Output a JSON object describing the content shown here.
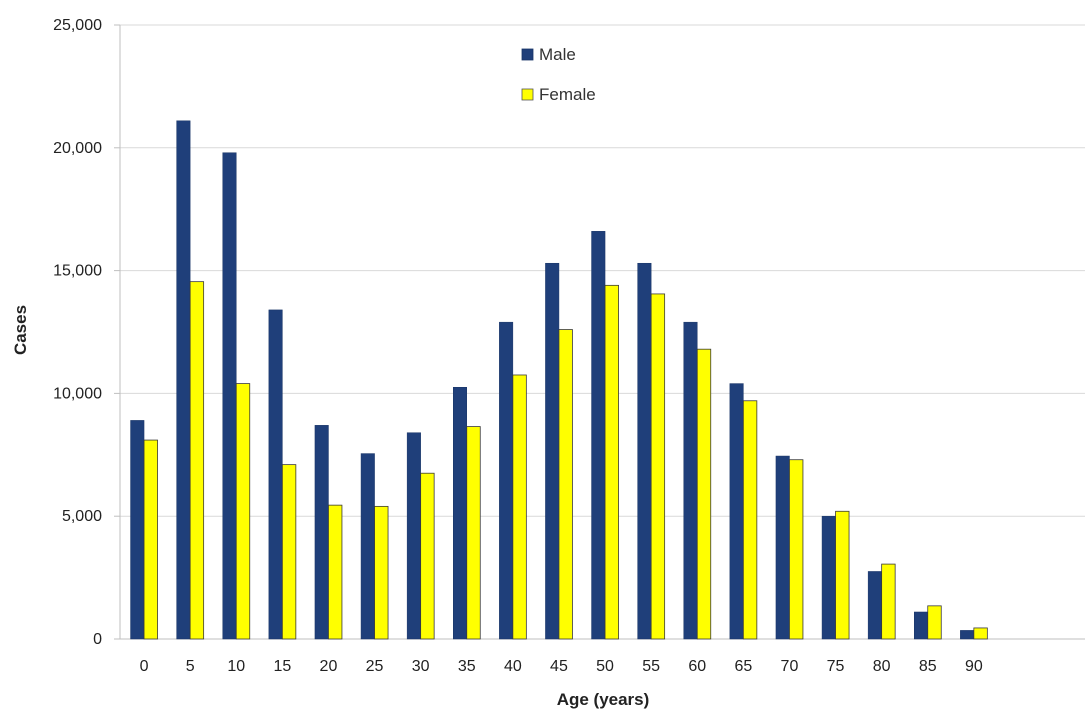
{
  "chart_data": {
    "type": "bar",
    "xlabel": "Age (years)",
    "ylabel": "Cases",
    "ylim": [
      0,
      25000
    ],
    "yticks": [
      "0",
      "5,000",
      "10,000",
      "15,000",
      "20,000",
      "25,000"
    ],
    "ytick_values": [
      0,
      5000,
      10000,
      15000,
      20000,
      25000
    ],
    "grid": true,
    "legend_position": "top-center",
    "categories": [
      "0",
      "5",
      "10",
      "15",
      "20",
      "25",
      "30",
      "35",
      "40",
      "45",
      "50",
      "55",
      "60",
      "65",
      "70",
      "75",
      "80",
      "85",
      "90"
    ],
    "series": [
      {
        "name": "Male",
        "color": "#1f3f7a",
        "values": [
          8900,
          21100,
          19800,
          13400,
          8700,
          7550,
          8400,
          10250,
          12900,
          15300,
          16600,
          15300,
          12900,
          10400,
          7450,
          5000,
          2750,
          1100,
          350
        ]
      },
      {
        "name": "Female",
        "color": "#ffff00",
        "values": [
          8100,
          14550,
          10400,
          7100,
          5450,
          5400,
          6750,
          8650,
          10750,
          12600,
          14400,
          14050,
          11800,
          9700,
          7300,
          5200,
          3050,
          1350,
          450
        ]
      }
    ]
  }
}
